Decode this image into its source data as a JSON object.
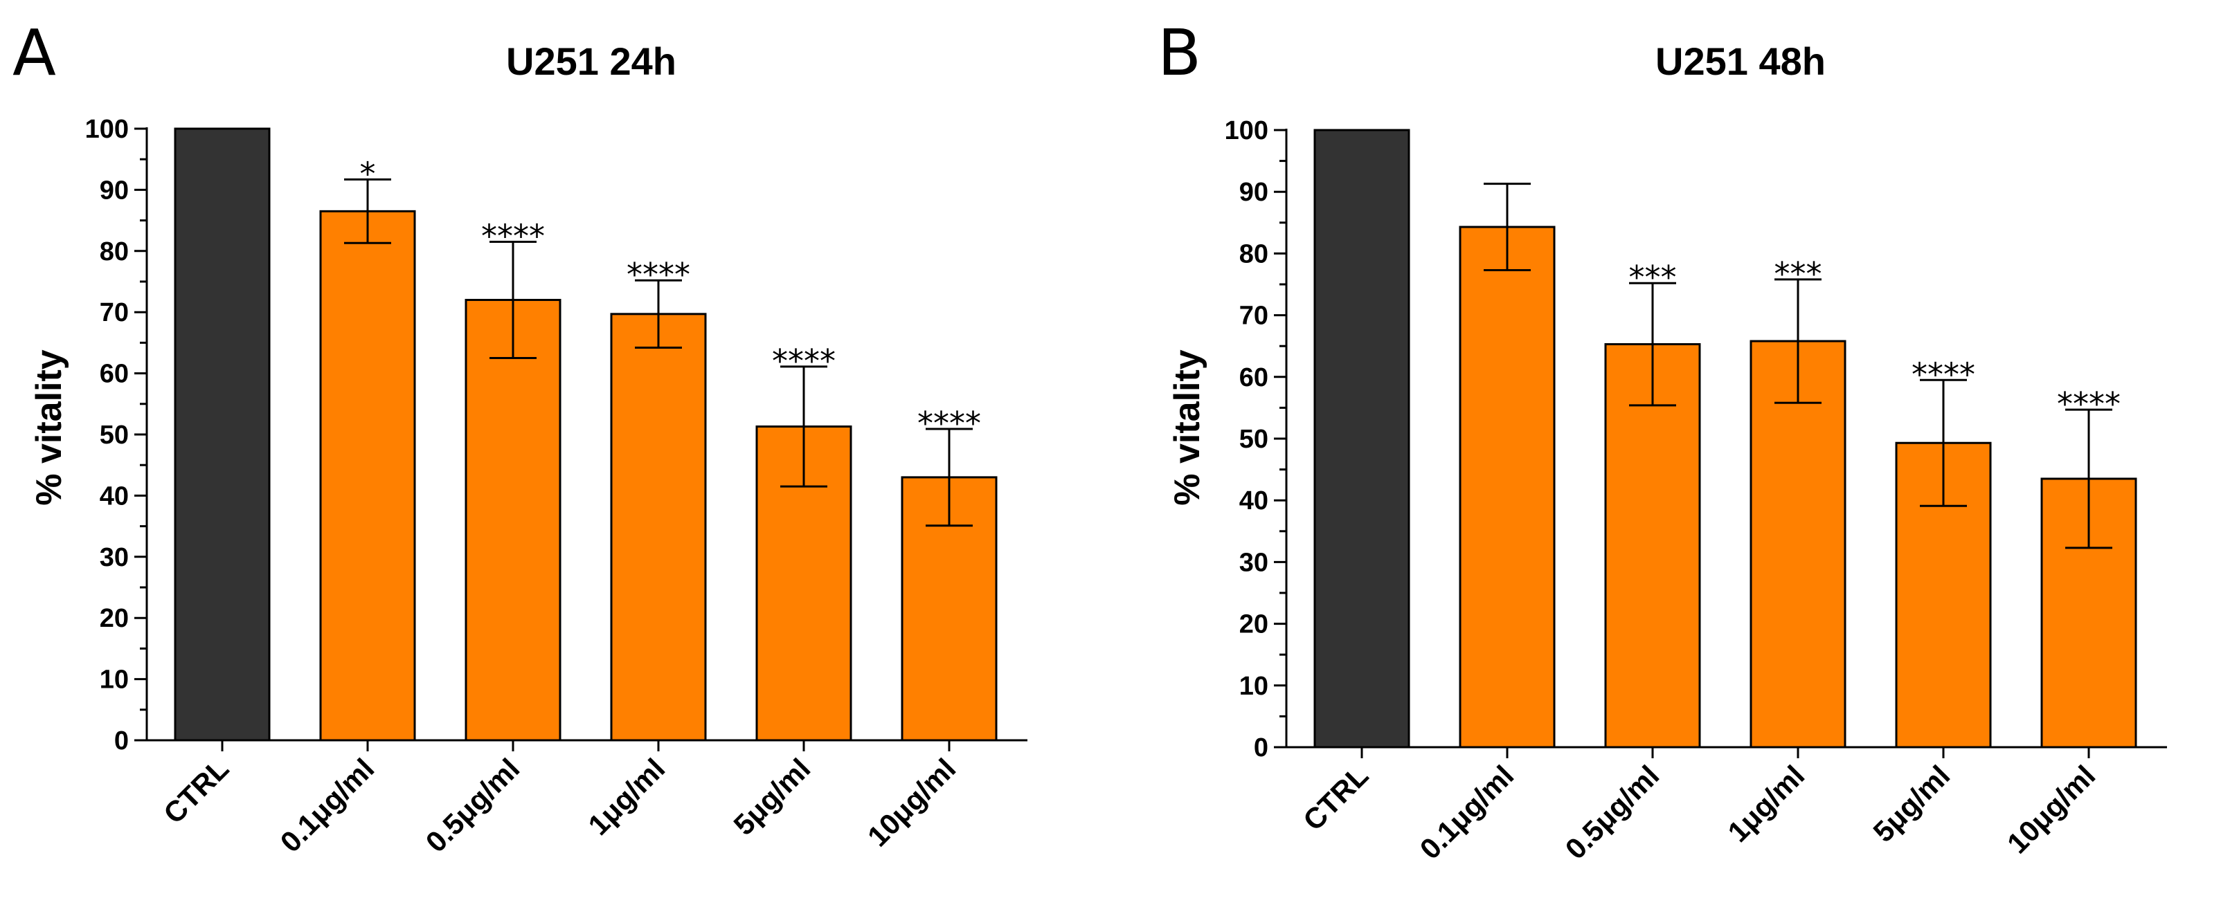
{
  "chart_data": [
    {
      "panel": "A",
      "type": "bar",
      "title": "U251 24h",
      "xlabel": "",
      "ylabel": "% vitality",
      "ylim": [
        0,
        100
      ],
      "yticks": [
        0,
        10,
        20,
        30,
        40,
        50,
        60,
        70,
        80,
        90,
        100
      ],
      "ytick_labels": [
        "0",
        "10",
        "20",
        "30",
        "40",
        "50",
        "60",
        "70",
        "80",
        "90",
        "100"
      ],
      "categories": [
        "CTRL",
        "0.1μg/ml",
        "0.5μg/ml",
        "1μg/ml",
        "5μg/ml",
        "10μg/ml"
      ],
      "values": [
        100,
        86.5,
        72,
        69.7,
        51.3,
        43
      ],
      "errors": [
        0,
        5.2,
        9.5,
        5.5,
        9.8,
        7.9
      ],
      "significance": [
        "",
        "*",
        "****",
        "****",
        "****",
        "****"
      ],
      "colors": [
        "#333333",
        "#ff8000",
        "#ff8000",
        "#ff8000",
        "#ff8000",
        "#ff8000"
      ]
    },
    {
      "panel": "B",
      "type": "bar",
      "title": "U251 48h",
      "xlabel": "",
      "ylabel": "% vitality",
      "ylim": [
        0,
        100
      ],
      "yticks": [
        0,
        10,
        20,
        30,
        40,
        50,
        60,
        70,
        80,
        90,
        100
      ],
      "ytick_labels": [
        "0",
        "10",
        "20",
        "30",
        "40",
        "50",
        "60",
        "70",
        "80",
        "90",
        "100"
      ],
      "categories": [
        "CTRL",
        "0.1μg/ml",
        "0.5μg/ml",
        "1μg/ml",
        "5μg/ml",
        "10μg/ml"
      ],
      "values": [
        100,
        84.3,
        65.3,
        65.8,
        49.3,
        43.5
      ],
      "errors": [
        0,
        7,
        9.9,
        10,
        10.2,
        11.2
      ],
      "significance": [
        "",
        "",
        "***",
        "***",
        "****",
        "****"
      ],
      "colors": [
        "#333333",
        "#ff8000",
        "#ff8000",
        "#ff8000",
        "#ff8000",
        "#ff8000"
      ]
    }
  ]
}
